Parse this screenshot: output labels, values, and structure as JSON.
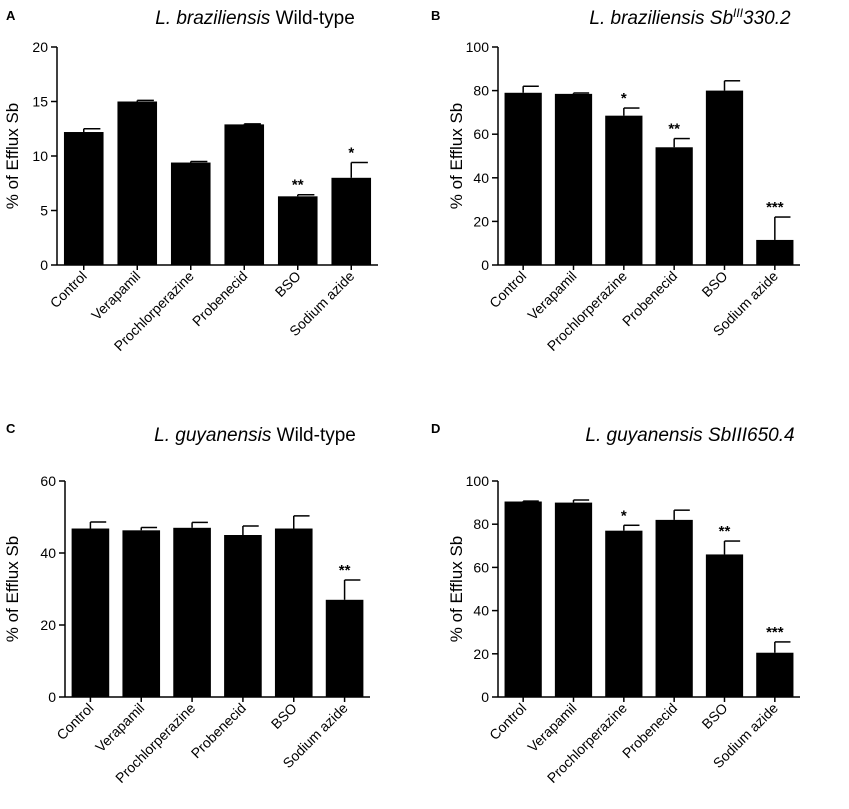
{
  "chart_data": [
    {
      "panel": "A",
      "type": "bar",
      "title_parts": [
        {
          "text": "L. braziliensis",
          "italic": true
        },
        {
          "text": " Wild-type",
          "italic": false
        }
      ],
      "ylabel": "% of Efflux Sb",
      "ylim": [
        0,
        20
      ],
      "yticks": [
        "0",
        "5",
        "10",
        "15",
        "20"
      ],
      "categories": [
        "Control",
        "Verapamil",
        "Prochlorperazine",
        "Probenecid",
        "BSO",
        "Sodium azide"
      ],
      "values": [
        12.2,
        15.0,
        9.4,
        12.9,
        6.3,
        8.0
      ],
      "errors": [
        0.3,
        0.1,
        0.1,
        0.05,
        0.15,
        1.4
      ],
      "significance": [
        "",
        "",
        "",
        "",
        "**",
        "*"
      ]
    },
    {
      "panel": "B",
      "type": "bar",
      "title_parts": [
        {
          "text": "L. braziliensis",
          "italic": true
        },
        {
          "text": " Sb",
          "italic": true
        },
        {
          "text": "III",
          "italic": true,
          "sup": true
        },
        {
          "text": "330.2",
          "italic": true
        }
      ],
      "ylabel": "% of Efflux Sb",
      "ylim": [
        0,
        100
      ],
      "yticks": [
        "0",
        "20",
        "40",
        "60",
        "80",
        "100"
      ],
      "categories": [
        "Control",
        "Verapamil",
        "Prochlorperazine",
        "Probenecid",
        "BSO",
        "Sodium azide"
      ],
      "values": [
        79,
        78.5,
        68.5,
        54,
        80,
        11.5
      ],
      "errors": [
        3,
        0.4,
        3.5,
        4,
        4.5,
        10.5
      ],
      "significance": [
        "",
        "",
        "*",
        "**",
        "",
        "***"
      ]
    },
    {
      "panel": "C",
      "type": "bar",
      "title_parts": [
        {
          "text": "L. guyanensis",
          "italic": true
        },
        {
          "text": " Wild-type",
          "italic": false
        }
      ],
      "ylabel": "% of Efflux Sb",
      "ylim": [
        0,
        60
      ],
      "yticks": [
        "0",
        "20",
        "40",
        "60"
      ],
      "categories": [
        "Control",
        "Verapamil",
        "Prochlorperazine",
        "Probenecid",
        "BSO",
        "Sodium azide"
      ],
      "values": [
        46.8,
        46.3,
        47,
        45,
        46.8,
        27
      ],
      "errors": [
        1.8,
        0.8,
        1.5,
        2.5,
        3.5,
        5.5
      ],
      "significance": [
        "",
        "",
        "",
        "",
        "",
        "**"
      ]
    },
    {
      "panel": "D",
      "type": "bar",
      "title_parts": [
        {
          "text": "L. guyanensis",
          "italic": true
        },
        {
          "text": " SbIII650.4",
          "italic": true
        }
      ],
      "ylabel": "% of Efflux Sb",
      "ylim": [
        0,
        100
      ],
      "yticks": [
        "0",
        "20",
        "40",
        "60",
        "80",
        "100"
      ],
      "categories": [
        "Control",
        "Verapamil",
        "Prochlorperazine",
        "Probenecid",
        "BSO",
        "Sodium azide"
      ],
      "values": [
        90.5,
        90,
        77,
        82,
        66,
        20.5
      ],
      "errors": [
        0.2,
        1.2,
        2.5,
        4.5,
        6.2,
        5
      ],
      "significance": [
        "",
        "",
        "*",
        "",
        "**",
        "***"
      ]
    }
  ]
}
